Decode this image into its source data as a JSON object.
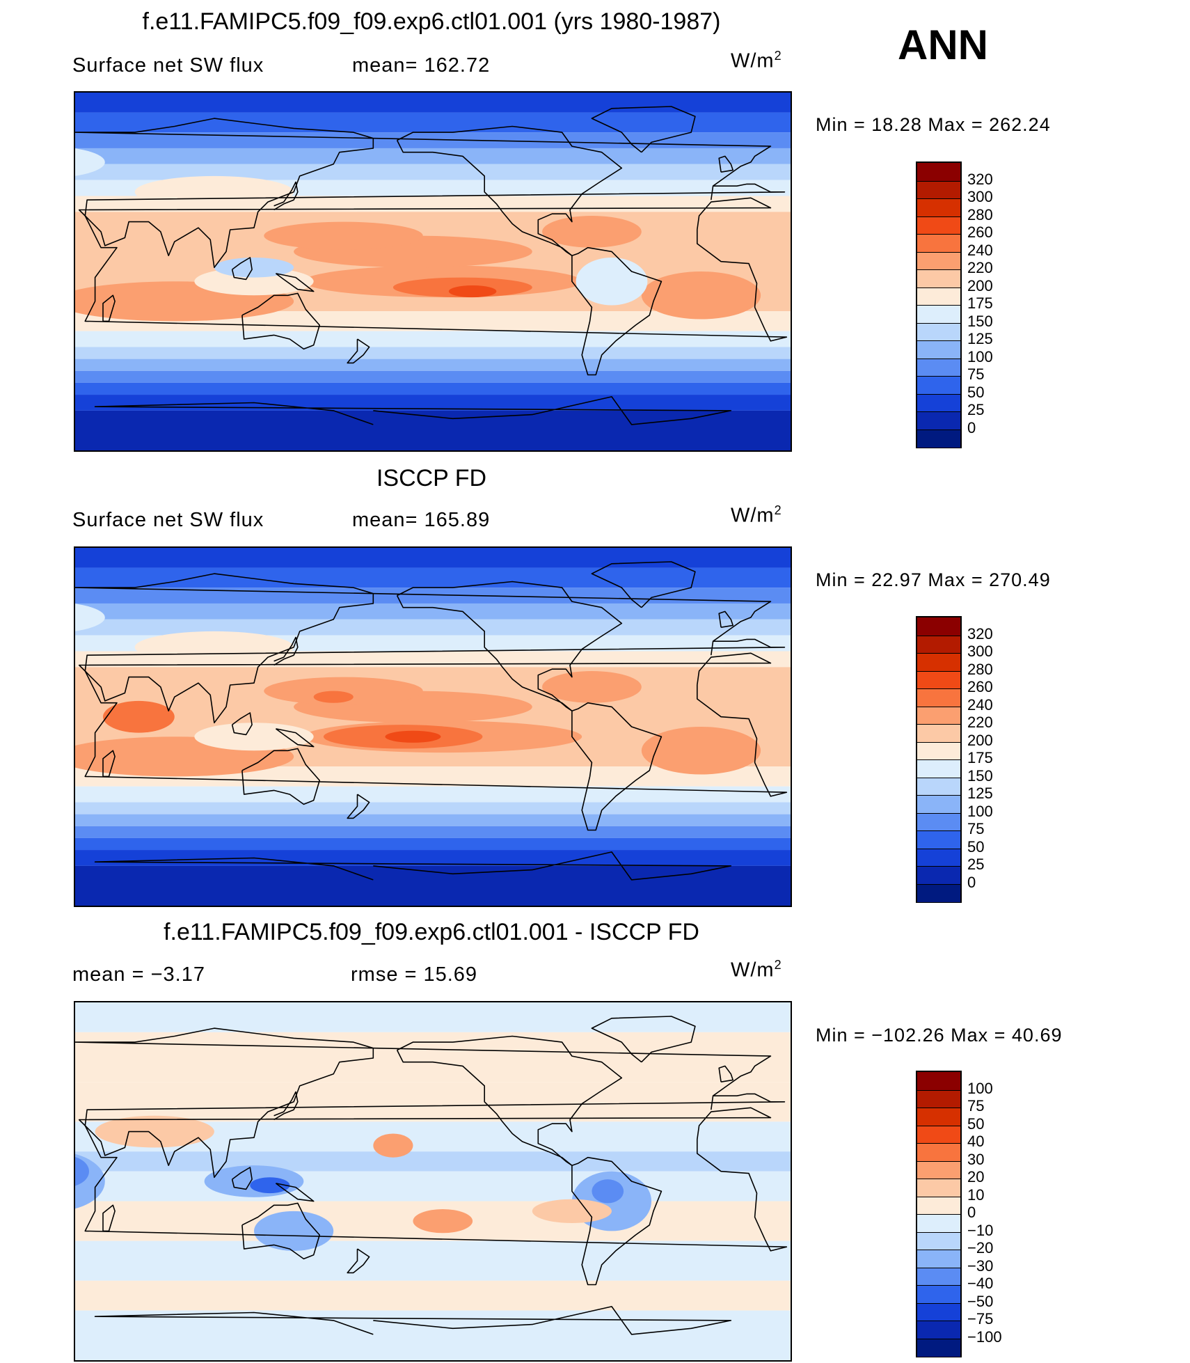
{
  "season": "ANN",
  "units_base": "W/m",
  "units_exp": "2",
  "panels": [
    {
      "title": "f.e11.FAMIPC5.f09_f09.exp6.ctl01.001 (yrs 1980-1987)",
      "left_text": "Surface net SW flux",
      "mid_text": "mean= 162.72",
      "minmax": "Min =   18.28 Max = 262.24",
      "type": "model"
    },
    {
      "title": "ISCCP FD",
      "left_text": "Surface net SW flux",
      "mid_text": "mean= 165.89",
      "minmax": "Min =   22.97 Max = 270.49",
      "type": "obs"
    },
    {
      "title": "f.e11.FAMIPC5.f09_f09.exp6.ctl01.001 - ISCCP FD",
      "left_text": "mean =   −3.17",
      "mid_text": "rmse =   15.69",
      "minmax": "Min = −102.26 Max =   40.69",
      "type": "diff"
    }
  ],
  "colorbars": {
    "field": {
      "labels": [
        "320",
        "300",
        "280",
        "260",
        "240",
        "220",
        "200",
        "175",
        "150",
        "125",
        "100",
        "75",
        "50",
        "25",
        "0"
      ],
      "colors": [
        "#8b0000",
        "#b31b00",
        "#d63000",
        "#f04a16",
        "#f8743e",
        "#fb9f70",
        "#fcc9a6",
        "#fdebd9",
        "#ddeefc",
        "#b9d6fb",
        "#8ab4f8",
        "#5b8cf3",
        "#2f64ec",
        "#1541d8",
        "#0a28b0",
        "#001a80"
      ]
    },
    "diff": {
      "labels": [
        "100",
        "75",
        "50",
        "40",
        "30",
        "20",
        "10",
        "0",
        "−10",
        "−20",
        "−30",
        "−40",
        "−50",
        "−75",
        "−100"
      ],
      "colors": [
        "#8b0000",
        "#b31b00",
        "#d63000",
        "#f04a16",
        "#f8743e",
        "#fb9f70",
        "#fcc9a6",
        "#fdebd9",
        "#ddeefc",
        "#b9d6fb",
        "#8ab4f8",
        "#5b8cf3",
        "#2f64ec",
        "#1541d8",
        "#0a28b0",
        "#001a80"
      ]
    }
  }
}
